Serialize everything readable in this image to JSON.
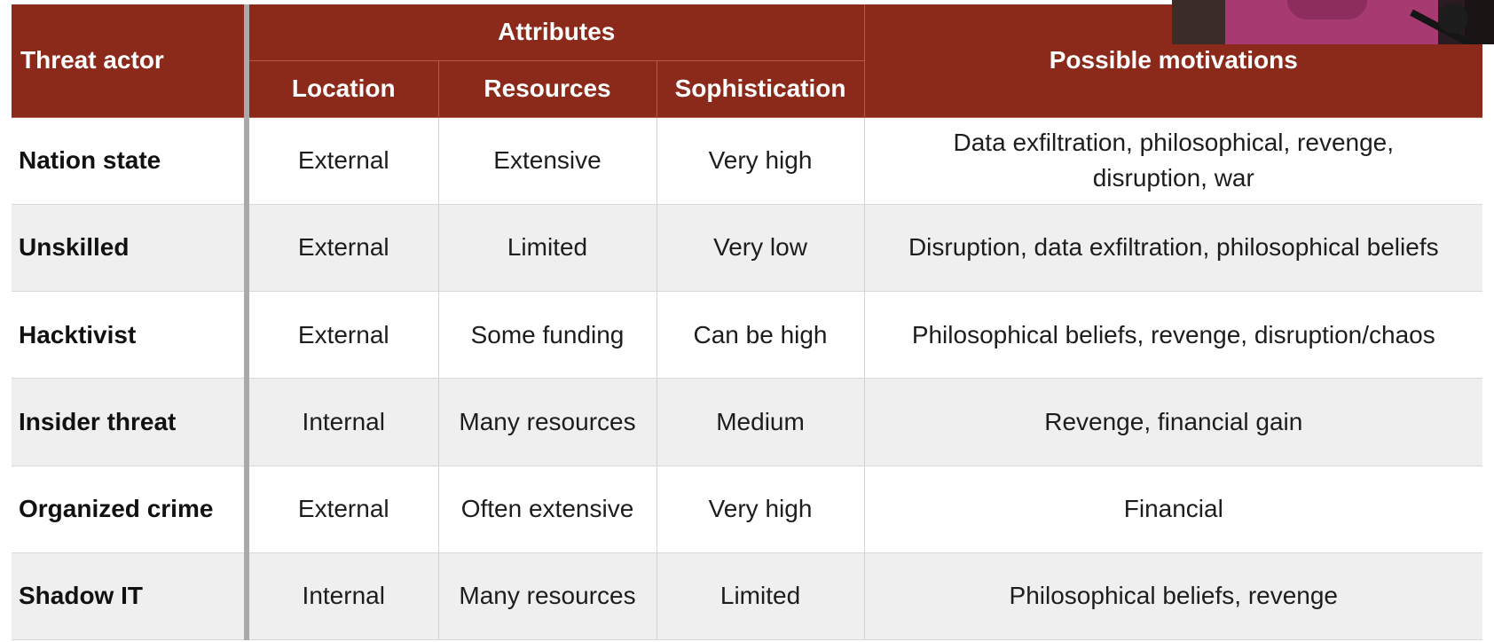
{
  "table": {
    "header": {
      "threat_actor": "Threat actor",
      "attributes": "Attributes",
      "location": "Location",
      "resources": "Resources",
      "sophistication": "Sophistication",
      "motivations": "Possible motivations"
    },
    "rows": [
      {
        "actor": "Nation state",
        "location": "External",
        "resources": "Extensive",
        "sophistication": "Very high",
        "motivation_line1": "Data exfiltration, philosophical, revenge,",
        "motivation_line2": "disruption, war"
      },
      {
        "actor": "Unskilled",
        "location": "External",
        "resources": "Limited",
        "sophistication": "Very low",
        "motivation": "Disruption, data exfiltration, philosophical beliefs"
      },
      {
        "actor": "Hacktivist",
        "location": "External",
        "resources": "Some funding",
        "sophistication": "Can be high",
        "motivation": "Philosophical beliefs, revenge, disruption/chaos"
      },
      {
        "actor": "Insider threat",
        "location": "Internal",
        "resources": "Many resources",
        "sophistication": "Medium",
        "motivation": "Revenge, financial gain"
      },
      {
        "actor": "Organized crime",
        "location": "External",
        "resources": "Often extensive",
        "sophistication": "Very high",
        "motivation": "Financial"
      },
      {
        "actor": "Shadow IT",
        "location": "Internal",
        "resources": "Many resources",
        "sophistication": "Limited",
        "motivation": "Philosophical beliefs, revenge"
      }
    ]
  },
  "colors": {
    "header_bg": "#8b2a1a",
    "header_text": "#ffffff",
    "row_alt_bg": "#efefef"
  }
}
